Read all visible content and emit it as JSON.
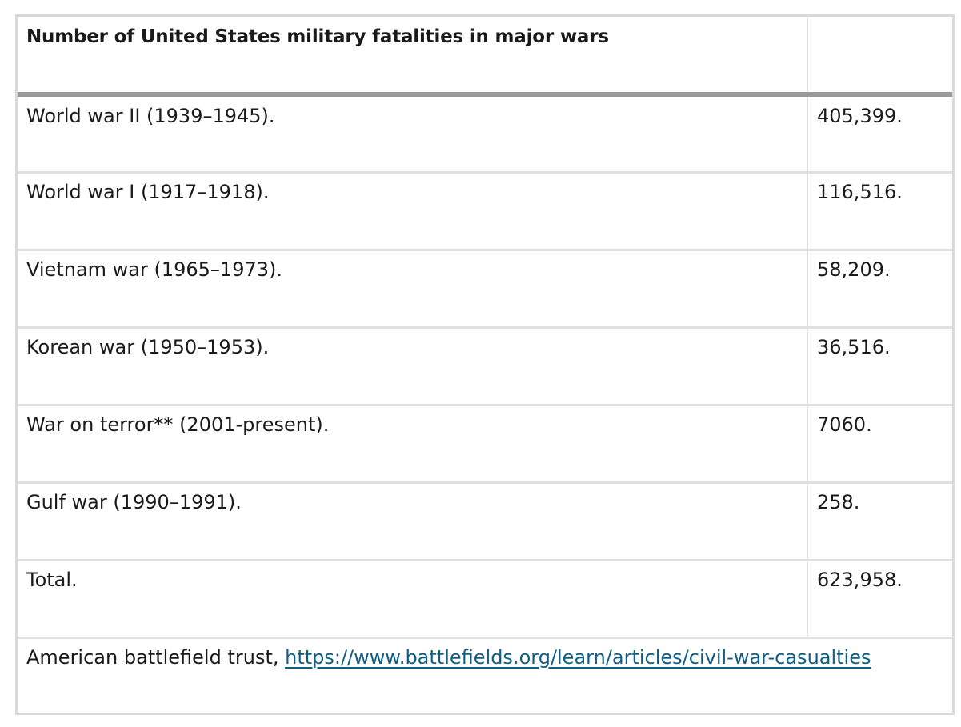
{
  "table": {
    "caption_header": "Number of United States military fatalities in major wars",
    "value_header": "",
    "rows": [
      {
        "war": "World war II (1939–1945).",
        "fatalities": "405,399."
      },
      {
        "war": "World war I (1917–1918).",
        "fatalities": "116,516."
      },
      {
        "war": "Vietnam war (1965–1973).",
        "fatalities": "58,209."
      },
      {
        "war": "Korean war (1950–1953).",
        "fatalities": "36,516."
      },
      {
        "war": "War on terror** (2001-present).",
        "fatalities": "7060."
      },
      {
        "war": "Gulf war (1990–1991).",
        "fatalities": "258."
      },
      {
        "war": "Total.",
        "fatalities": "623,958."
      }
    ],
    "footer": {
      "source_text": "American battlefield trust, ",
      "source_link": "https://www.battlefields.org/learn/articles/civil-war-casualties"
    }
  }
}
